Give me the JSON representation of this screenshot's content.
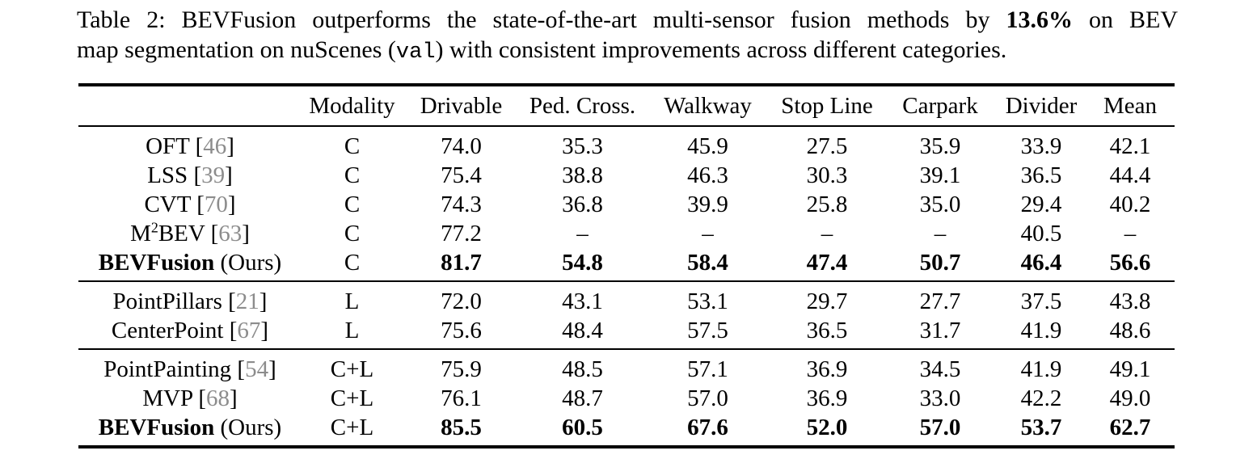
{
  "caption": {
    "label_and_line1_pre": "Table 2: BEVFusion outperforms the state-of-the-art multi-sensor fusion methods by ",
    "line1_bold": "13.6%",
    "line1_post": " on BEV",
    "line2_pre": "map segmentation on nuScenes (",
    "line2_mono": "val",
    "line2_post": ") with consistent improvements across different categories."
  },
  "table": {
    "columns": [
      "Modality",
      "Drivable",
      "Ped. Cross.",
      "Walkway",
      "Stop Line",
      "Carpark",
      "Divider",
      "Mean"
    ],
    "groups": [
      {
        "rows": [
          {
            "name": "OFT",
            "cite": "46",
            "modality": "C",
            "values": [
              "74.0",
              "35.3",
              "45.9",
              "27.5",
              "35.9",
              "33.9",
              "42.1"
            ],
            "bold": false
          },
          {
            "name": "LSS",
            "cite": "39",
            "modality": "C",
            "values": [
              "75.4",
              "38.8",
              "46.3",
              "30.3",
              "39.1",
              "36.5",
              "44.4"
            ],
            "bold": false
          },
          {
            "name": "CVT",
            "cite": "70",
            "modality": "C",
            "values": [
              "74.3",
              "36.8",
              "39.9",
              "25.8",
              "35.0",
              "29.4",
              "40.2"
            ],
            "bold": false
          },
          {
            "name": "M²BEV",
            "cite": "63",
            "modality": "C",
            "values": [
              "77.2",
              "–",
              "–",
              "–",
              "–",
              "40.5",
              "–"
            ],
            "bold": false
          },
          {
            "name": "BEVFusion",
            "suffix": "(Ours)",
            "modality": "C",
            "values": [
              "81.7",
              "54.8",
              "58.4",
              "47.4",
              "50.7",
              "46.4",
              "56.6"
            ],
            "bold": true
          }
        ]
      },
      {
        "rows": [
          {
            "name": "PointPillars",
            "cite": "21",
            "modality": "L",
            "values": [
              "72.0",
              "43.1",
              "53.1",
              "29.7",
              "27.7",
              "37.5",
              "43.8"
            ],
            "bold": false
          },
          {
            "name": "CenterPoint",
            "cite": "67",
            "modality": "L",
            "values": [
              "75.6",
              "48.4",
              "57.5",
              "36.5",
              "31.7",
              "41.9",
              "48.6"
            ],
            "bold": false
          }
        ]
      },
      {
        "rows": [
          {
            "name": "PointPainting",
            "cite": "54",
            "modality": "C+L",
            "values": [
              "75.9",
              "48.5",
              "57.1",
              "36.9",
              "34.5",
              "41.9",
              "49.1"
            ],
            "bold": false
          },
          {
            "name": "MVP",
            "cite": "68",
            "modality": "C+L",
            "values": [
              "76.1",
              "48.7",
              "57.0",
              "36.9",
              "33.0",
              "42.2",
              "49.0"
            ],
            "bold": false
          },
          {
            "name": "BEVFusion",
            "suffix": "(Ours)",
            "modality": "C+L",
            "values": [
              "85.5",
              "60.5",
              "67.6",
              "52.0",
              "57.0",
              "53.7",
              "62.7"
            ],
            "bold": true
          }
        ]
      }
    ],
    "citation_color": "#8c8c8c"
  }
}
